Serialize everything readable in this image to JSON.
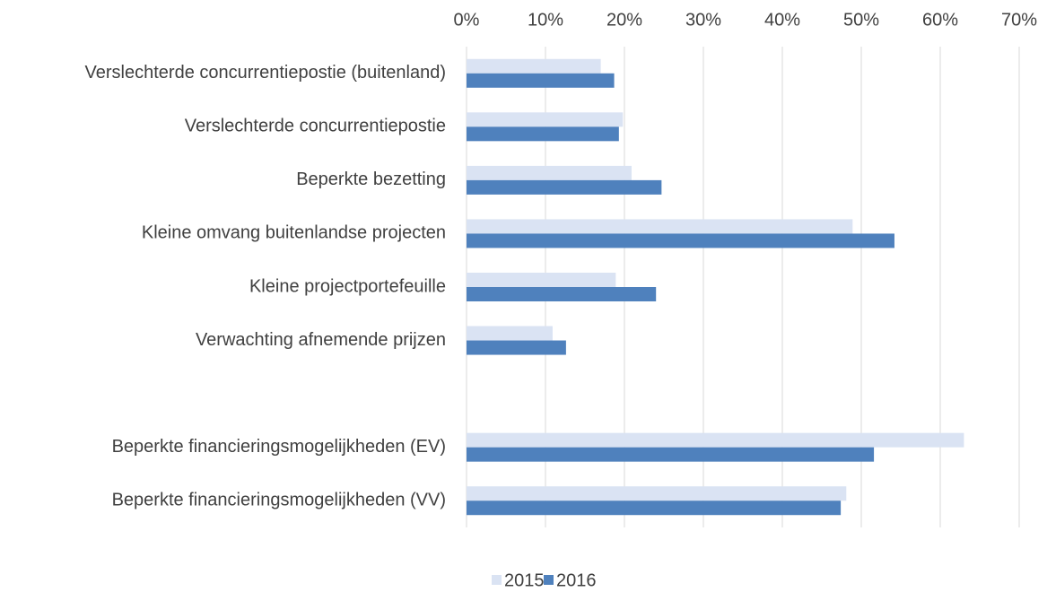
{
  "chart_data": {
    "type": "bar",
    "orientation": "horizontal",
    "categories": [
      "Verslechterde concurrentiepostie (buitenland)",
      "Verslechterde concurrentiepostie",
      "Beperkte bezetting",
      "Kleine omvang buitenlandse projecten",
      "Kleine projectportefeuille",
      "Verwachting afnemende prijzen",
      null,
      "Beperkte financieringsmogelijkheden (EV)",
      "Beperkte financieringsmogelijkheden (VV)"
    ],
    "series": [
      {
        "name": "2015",
        "color": "#dae3f3",
        "values": [
          17,
          19.8,
          20.9,
          48.9,
          18.9,
          10.9,
          null,
          63,
          48.1
        ]
      },
      {
        "name": "2016",
        "color": "#4f81bd",
        "values": [
          18.7,
          19.3,
          24.7,
          54.2,
          24.0,
          12.6,
          null,
          51.6,
          47.4
        ]
      }
    ],
    "xlim": [
      0,
      70
    ],
    "xticks": [
      {
        "value": 0,
        "label": "0%"
      },
      {
        "value": 10,
        "label": "10%"
      },
      {
        "value": 20,
        "label": "20%"
      },
      {
        "value": 30,
        "label": "30%"
      },
      {
        "value": 40,
        "label": "40%"
      },
      {
        "value": 50,
        "label": "50%"
      },
      {
        "value": 60,
        "label": "60%"
      },
      {
        "value": 70,
        "label": "70%"
      }
    ],
    "grid": true,
    "legend": "bottom"
  }
}
